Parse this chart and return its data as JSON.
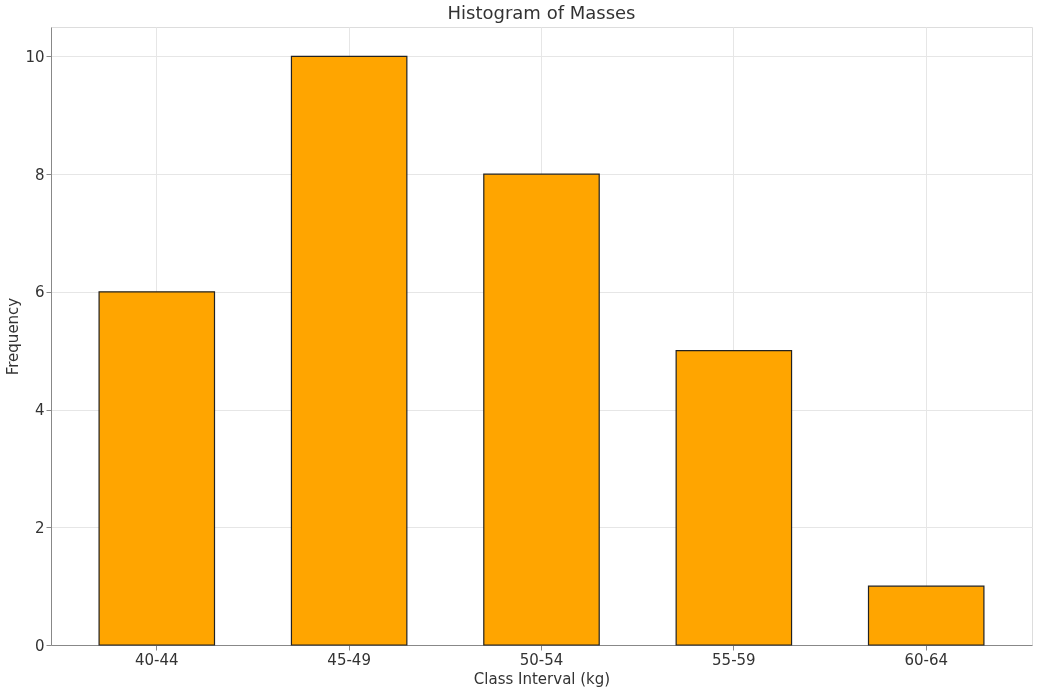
{
  "chart_data": {
    "type": "bar",
    "title": "Histogram of Masses",
    "xlabel": "Class Interval (kg)",
    "ylabel": "Frequency",
    "categories": [
      "40-44",
      "45-49",
      "50-54",
      "55-59",
      "60-64"
    ],
    "values": [
      6,
      10,
      8,
      5,
      1
    ],
    "color": "#ffa500",
    "ylim": [
      0,
      10.5
    ],
    "yticks": [
      0,
      2,
      4,
      6,
      8,
      10
    ],
    "grid": true
  }
}
